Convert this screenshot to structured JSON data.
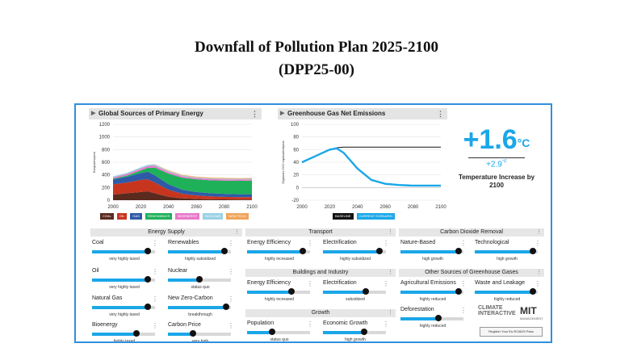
{
  "heading": {
    "line1": "Downfall of Pollution Plan 2025-2100",
    "line2": "(DPP25-00)"
  },
  "energy_panel": {
    "title": "Global Sources of Primary Energy"
  },
  "emissions_panel": {
    "title": "Greenhouse Gas Net Emissions"
  },
  "temperature": {
    "value": "+1.6",
    "unit": "°C",
    "secondary": "+2.9",
    "secondary_unit": "°F",
    "label": "Temperature Increase by 2100"
  },
  "chart_data": [
    {
      "type": "area",
      "title": "Global Sources of Primary Energy",
      "ylabel": "Exajoules/year",
      "x": [
        2000,
        2010,
        2020,
        2025,
        2030,
        2040,
        2050,
        2060,
        2070,
        2080,
        2090,
        2100
      ],
      "ylim": [
        0,
        1200
      ],
      "yticks": [
        0,
        200,
        400,
        600,
        800,
        1000,
        1200
      ],
      "xticks": [
        2000,
        2020,
        2040,
        2060,
        2080,
        2100
      ],
      "series": [
        {
          "name": "COAL",
          "color": "#5a2a1e",
          "values": [
            90,
            110,
            130,
            140,
            110,
            55,
            30,
            20,
            15,
            12,
            10,
            10
          ]
        },
        {
          "name": "OIL",
          "color": "#c8351f",
          "values": [
            160,
            170,
            190,
            190,
            170,
            110,
            70,
            55,
            45,
            40,
            38,
            38
          ]
        },
        {
          "name": "GAS",
          "color": "#2f5aa8",
          "values": [
            80,
            90,
            110,
            120,
            115,
            85,
            65,
            55,
            50,
            48,
            46,
            46
          ]
        },
        {
          "name": "RENEWABLES",
          "color": "#1fb05a",
          "values": [
            10,
            20,
            40,
            60,
            120,
            170,
            190,
            200,
            205,
            210,
            212,
            215
          ]
        },
        {
          "name": "BIOENERGY",
          "color": "#e879c9",
          "values": [
            20,
            25,
            30,
            30,
            30,
            25,
            22,
            20,
            20,
            20,
            20,
            20
          ]
        },
        {
          "name": "NUCLEAR",
          "color": "#9ad1e6",
          "values": [
            15,
            18,
            20,
            20,
            20,
            15,
            12,
            10,
            10,
            10,
            10,
            10
          ]
        },
        {
          "name": "NEW TECH",
          "color": "#f0a45a",
          "values": [
            0,
            0,
            0,
            0,
            5,
            10,
            12,
            12,
            12,
            12,
            12,
            12
          ]
        }
      ]
    },
    {
      "type": "line",
      "title": "Greenhouse Gas Net Emissions",
      "ylabel": "Gigatons CO2 equivalent/year",
      "x": [
        2000,
        2010,
        2020,
        2025,
        2030,
        2040,
        2050,
        2060,
        2070,
        2080,
        2090,
        2100
      ],
      "ylim": [
        -20,
        100
      ],
      "yticks": [
        -20,
        0,
        20,
        40,
        60,
        80,
        100
      ],
      "xticks": [
        2000,
        2020,
        2040,
        2060,
        2080,
        2100
      ],
      "series": [
        {
          "name": "BASELINE",
          "color": "#111111",
          "values": [
            40,
            50,
            60,
            63,
            64,
            64,
            64,
            64,
            64,
            64,
            64,
            64
          ]
        },
        {
          "name": "CURRENT SCENARIO",
          "color": "#1aa7e8",
          "values": [
            40,
            50,
            60,
            62,
            55,
            30,
            12,
            6,
            4,
            3,
            3,
            3
          ]
        }
      ]
    }
  ],
  "groups": {
    "energy_supply": "Energy Supply",
    "transport": "Transport",
    "buildings": "Buildings and Industry",
    "growth": "Growth",
    "cdr": "Carbon Dioxide Removal",
    "other": "Other Sources of Greenhouse Gases"
  },
  "sliders": {
    "coal": {
      "label": "Coal",
      "value": "very highly taxed",
      "level": 0.88
    },
    "renewables": {
      "label": "Renewables",
      "value": "highly subsidized",
      "level": 0.9
    },
    "oil": {
      "label": "Oil",
      "value": "very highly taxed",
      "level": 0.88
    },
    "nuclear": {
      "label": "Nuclear",
      "value": "status quo",
      "level": 0.5
    },
    "natural_gas": {
      "label": "Natural Gas",
      "value": "very highly taxed",
      "level": 0.88
    },
    "new_zero_carbon": {
      "label": "New Zero-Carbon",
      "value": "breakthrough",
      "level": 0.92
    },
    "bioenergy": {
      "label": "Bioenergy",
      "value": "highly taxed",
      "level": 0.7
    },
    "carbon_price": {
      "label": "Carbon Price",
      "value": "very high",
      "level": 0.4
    },
    "transport_efficiency": {
      "label": "Energy Efficiency",
      "value": "highly increased",
      "level": 0.88
    },
    "transport_electrification": {
      "label": "Electrification",
      "value": "highly subsidized",
      "level": 0.9
    },
    "building_efficiency": {
      "label": "Energy Efficiency",
      "value": "highly increased",
      "level": 0.7
    },
    "building_electrification": {
      "label": "Electrification",
      "value": "subsidized",
      "level": 0.68
    },
    "population": {
      "label": "Population",
      "value": "status quo",
      "level": 0.4
    },
    "economic_growth": {
      "label": "Economic Growth",
      "value": "high growth",
      "level": 0.65
    },
    "nature_based": {
      "label": "Nature-Based",
      "value": "high growth",
      "level": 0.92
    },
    "technological": {
      "label": "Technological",
      "value": "high growth",
      "level": 0.92
    },
    "agricultural": {
      "label": "Agricultural Emissions",
      "value": "highly reduced",
      "level": 0.92
    },
    "waste_leakage": {
      "label": "Waste and Leakage",
      "value": "highly reduced",
      "level": 0.92
    },
    "deforestation": {
      "label": "Deforestation",
      "value": "highly reduced",
      "level": 0.6
    }
  },
  "logos": {
    "climate_interactive": "CLIMATE INTERACTIVE",
    "mit": "MIT",
    "mit_sub": "MANAGEMENT"
  },
  "register_button": "Register Your En-ROADS Pass"
}
